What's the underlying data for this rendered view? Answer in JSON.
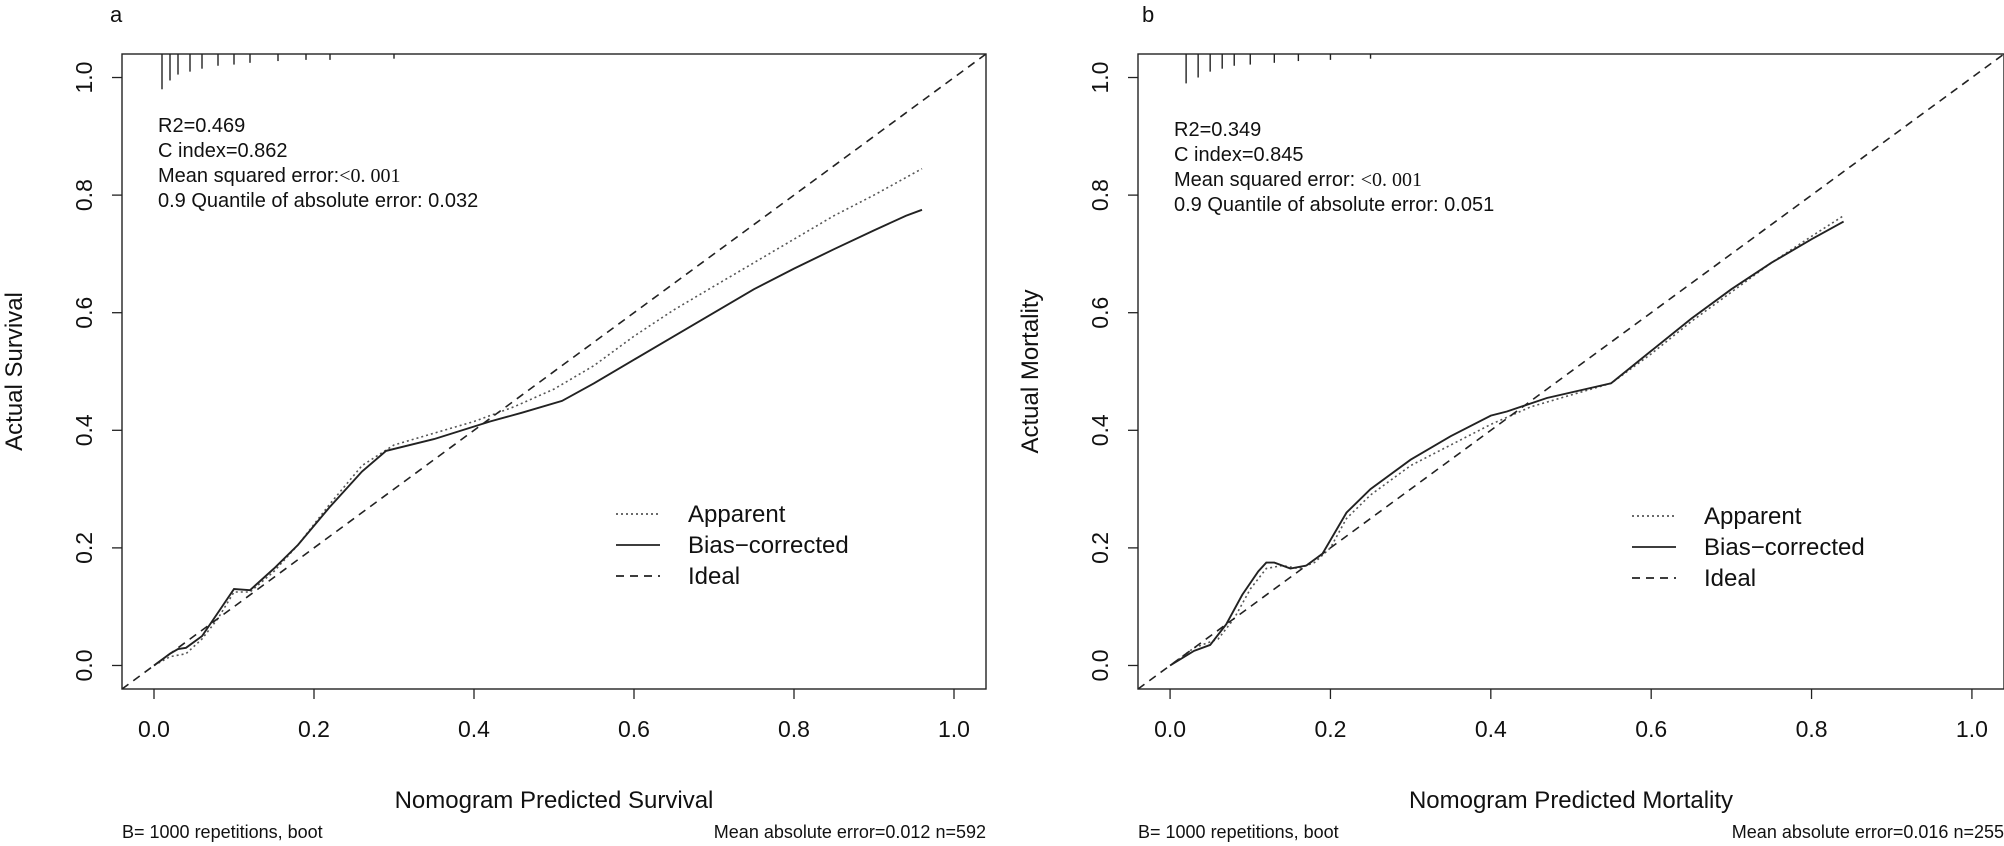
{
  "chart_data": [
    {
      "type": "line",
      "panel_label": "a",
      "xlabel": "Nomogram Predicted Survival",
      "ylabel": "Actual Survival",
      "xlim": [
        -0.04,
        1.04
      ],
      "ylim": [
        -0.04,
        1.04
      ],
      "xticks": [
        "0.0",
        "0.2",
        "0.4",
        "0.6",
        "0.8",
        "1.0"
      ],
      "yticks": [
        "0.0",
        "0.2",
        "0.4",
        "0.6",
        "0.8",
        "1.0"
      ],
      "stats": {
        "r2": "R2=0.469",
        "c_index": "C index=0.862",
        "mse_prefix": "Mean squared error:",
        "mse_value": "<0. 001",
        "quantile": "0.9 Quantile of absolute error: 0.032"
      },
      "footer_left": "B= 1000 repetitions, boot",
      "footer_right": "Mean absolute error=0.012 n=592",
      "legend": [
        "Apparent",
        "Bias−corrected",
        "Ideal"
      ],
      "rug_x": [
        0.01,
        0.02,
        0.03,
        0.045,
        0.06,
        0.08,
        0.1,
        0.12,
        0.155,
        0.19,
        0.22,
        0.3
      ],
      "rug_len": [
        0.06,
        0.045,
        0.035,
        0.03,
        0.025,
        0.02,
        0.018,
        0.015,
        0.012,
        0.01,
        0.01,
        0.008
      ],
      "series": [
        {
          "name": "Apparent",
          "style": "dotted",
          "x": [
            0.0,
            0.02,
            0.04,
            0.06,
            0.08,
            0.1,
            0.12,
            0.15,
            0.18,
            0.22,
            0.26,
            0.3,
            0.35,
            0.4,
            0.45,
            0.5,
            0.55,
            0.6,
            0.65,
            0.7,
            0.75,
            0.8,
            0.85,
            0.9,
            0.96
          ],
          "y": [
            0.0,
            0.015,
            0.02,
            0.045,
            0.08,
            0.125,
            0.125,
            0.16,
            0.205,
            0.275,
            0.34,
            0.375,
            0.395,
            0.415,
            0.44,
            0.47,
            0.51,
            0.56,
            0.605,
            0.645,
            0.685,
            0.725,
            0.765,
            0.8,
            0.845
          ]
        },
        {
          "name": "Bias−corrected",
          "style": "solid",
          "x": [
            0.0,
            0.02,
            0.03,
            0.04,
            0.06,
            0.08,
            0.1,
            0.12,
            0.15,
            0.18,
            0.22,
            0.26,
            0.29,
            0.35,
            0.42,
            0.46,
            0.51,
            0.55,
            0.6,
            0.65,
            0.7,
            0.75,
            0.8,
            0.85,
            0.9,
            0.94,
            0.96
          ],
          "y": [
            0.0,
            0.02,
            0.028,
            0.03,
            0.05,
            0.09,
            0.13,
            0.128,
            0.165,
            0.205,
            0.27,
            0.33,
            0.365,
            0.385,
            0.415,
            0.43,
            0.45,
            0.48,
            0.52,
            0.56,
            0.6,
            0.64,
            0.675,
            0.708,
            0.74,
            0.765,
            0.775
          ]
        },
        {
          "name": "Ideal",
          "style": "dashed",
          "x": [
            -0.04,
            1.04
          ],
          "y": [
            -0.04,
            1.04
          ]
        }
      ]
    },
    {
      "type": "line",
      "panel_label": "b",
      "xlabel": "Nomogram Predicted Mortality",
      "ylabel": "Actual Mortality",
      "xlim": [
        -0.04,
        1.04
      ],
      "ylim": [
        -0.04,
        1.04
      ],
      "xticks": [
        "0.0",
        "0.2",
        "0.4",
        "0.6",
        "0.8",
        "1.0"
      ],
      "yticks": [
        "0.0",
        "0.2",
        "0.4",
        "0.6",
        "0.8",
        "1.0"
      ],
      "stats": {
        "r2": "R2=0.349",
        "c_index": "C index=0.845",
        "mse_prefix": "Mean squared error: ",
        "mse_value": "<0. 001",
        "quantile": "0.9 Quantile of absolute error: 0.051"
      },
      "footer_left": "B= 1000 repetitions, boot",
      "footer_right": "Mean absolute error=0.016 n=255",
      "legend": [
        "Apparent",
        "Bias−corrected",
        "Ideal"
      ],
      "rug_x": [
        0.02,
        0.035,
        0.05,
        0.065,
        0.08,
        0.1,
        0.13,
        0.16,
        0.2,
        0.25
      ],
      "rug_len": [
        0.05,
        0.04,
        0.03,
        0.025,
        0.02,
        0.018,
        0.015,
        0.012,
        0.01,
        0.008
      ],
      "series": [
        {
          "name": "Apparent",
          "style": "dotted",
          "x": [
            0.0,
            0.03,
            0.06,
            0.08,
            0.1,
            0.12,
            0.14,
            0.16,
            0.18,
            0.2,
            0.22,
            0.25,
            0.3,
            0.35,
            0.4,
            0.45,
            0.5,
            0.55,
            0.6,
            0.65,
            0.7,
            0.75,
            0.8,
            0.84
          ],
          "y": [
            0.0,
            0.03,
            0.045,
            0.08,
            0.13,
            0.165,
            0.17,
            0.165,
            0.175,
            0.2,
            0.25,
            0.29,
            0.34,
            0.375,
            0.41,
            0.44,
            0.46,
            0.48,
            0.53,
            0.585,
            0.635,
            0.685,
            0.73,
            0.765
          ]
        },
        {
          "name": "Bias−corrected",
          "style": "solid",
          "x": [
            0.0,
            0.03,
            0.05,
            0.07,
            0.09,
            0.11,
            0.12,
            0.13,
            0.15,
            0.17,
            0.19,
            0.22,
            0.25,
            0.3,
            0.35,
            0.4,
            0.42,
            0.47,
            0.55,
            0.6,
            0.65,
            0.7,
            0.75,
            0.8,
            0.84
          ],
          "y": [
            0.0,
            0.025,
            0.035,
            0.07,
            0.12,
            0.16,
            0.175,
            0.175,
            0.165,
            0.17,
            0.19,
            0.26,
            0.3,
            0.35,
            0.39,
            0.425,
            0.432,
            0.455,
            0.48,
            0.535,
            0.59,
            0.64,
            0.685,
            0.725,
            0.755
          ]
        },
        {
          "name": "Ideal",
          "style": "dashed",
          "x": [
            -0.04,
            1.04
          ],
          "y": [
            -0.04,
            1.04
          ]
        }
      ]
    }
  ]
}
